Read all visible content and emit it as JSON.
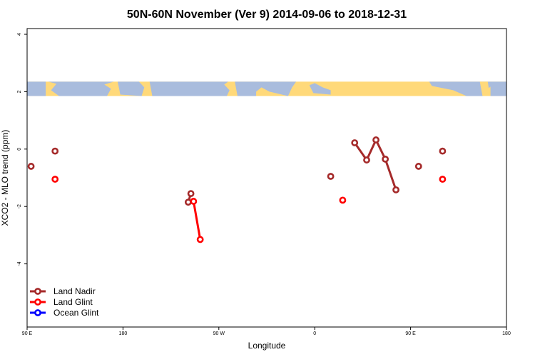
{
  "chart_data": {
    "type": "line",
    "title": "50N-60N November (Ver 9)   2014-09-06 to 2018-12-31",
    "xlabel": "Longitude",
    "ylabel": "XCO2 - MLO trend (ppm)",
    "xlim": [
      90,
      450
    ],
    "ylim": [
      -6.2,
      4.2
    ],
    "x_ticks": [
      {
        "value": 90,
        "label": "90 E"
      },
      {
        "value": 162,
        "label": "180"
      },
      {
        "value": 234,
        "label": "90 W"
      },
      {
        "value": 306,
        "label": "0"
      },
      {
        "value": 378,
        "label": "90 E"
      },
      {
        "value": 450,
        "label": "180"
      }
    ],
    "y_ticks": [
      {
        "value": 4,
        "label": "4"
      },
      {
        "value": 2,
        "label": "2"
      },
      {
        "value": 0,
        "label": "0"
      },
      {
        "value": -2,
        "label": "-2"
      },
      {
        "value": -4,
        "label": "-4"
      }
    ],
    "map_band": {
      "y_from": 1.85,
      "y_to": 2.35,
      "ocean_color": "#a9bcdd",
      "land_color": "#ffd97a"
    },
    "series": [
      {
        "name": "Land Nadir",
        "color": "#a52a2a",
        "segments": [
          [
            [
              93,
              -0.6
            ]
          ],
          [
            [
              111,
              -0.07
            ]
          ],
          [
            [
              211,
              -1.85
            ],
            [
              213,
              -1.55
            ]
          ],
          [
            [
              318,
              -0.95
            ]
          ],
          [
            [
              336,
              0.22
            ],
            [
              345,
              -0.38
            ],
            [
              352,
              0.32
            ],
            [
              359,
              -0.35
            ],
            [
              367,
              -1.42
            ]
          ],
          [
            [
              384,
              -0.6
            ]
          ],
          [
            [
              402,
              -0.07
            ]
          ]
        ]
      },
      {
        "name": "Land Glint",
        "color": "#ff0000",
        "segments": [
          [
            [
              111,
              -1.05
            ]
          ],
          [
            [
              215,
              -1.82
            ],
            [
              220,
              -3.15
            ]
          ],
          [
            [
              327,
              -1.78
            ]
          ],
          [
            [
              402,
              -1.05
            ]
          ]
        ]
      },
      {
        "name": "Ocean Glint",
        "color": "#0000ff",
        "segments": []
      }
    ],
    "legend_position": "bottom-left"
  }
}
